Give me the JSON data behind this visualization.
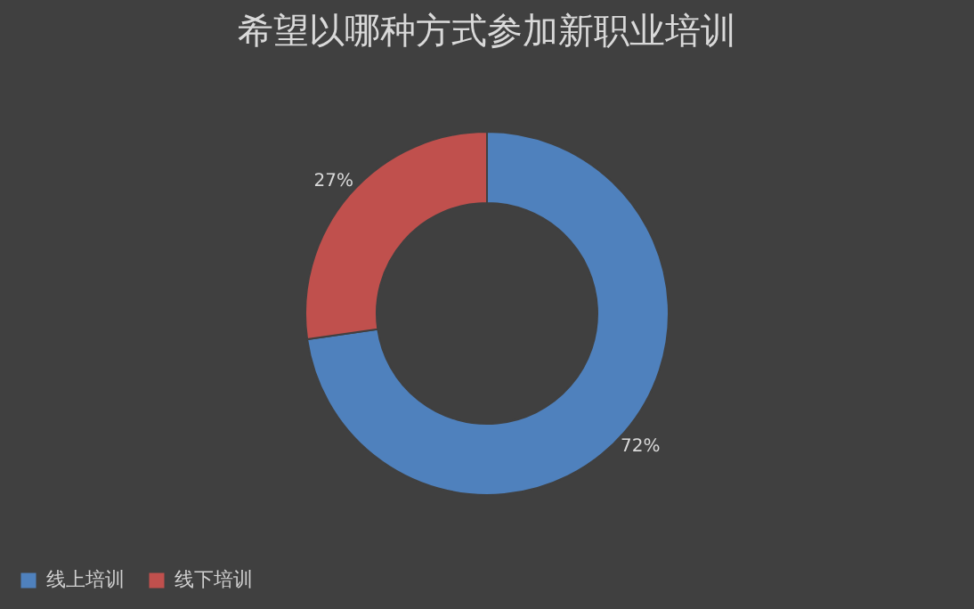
{
  "chart_data": {
    "type": "donut",
    "title": "希望以哪种方式参加新职业培训",
    "categories": [
      "线上培训",
      "线下培训"
    ],
    "values": [
      72,
      27
    ],
    "colors": [
      "#4f81bd",
      "#c0504d"
    ],
    "value_labels": [
      "72%",
      "27%"
    ],
    "legend": "bottom"
  }
}
